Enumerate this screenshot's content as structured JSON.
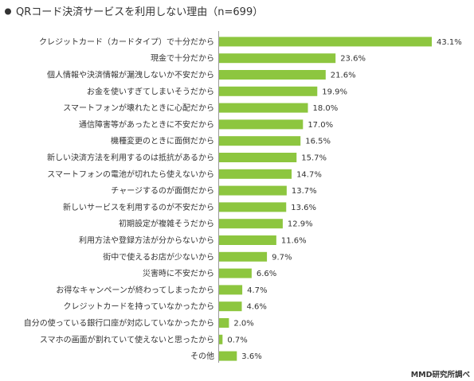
{
  "chart_data": {
    "type": "bar",
    "orientation": "horizontal",
    "title": "QRコード決済サービスを利用しない理由（n=699）",
    "source": "MMD研究所調べ",
    "bar_color": "#8dc63f",
    "value_suffix": "%",
    "xlim": [
      0,
      43.1
    ],
    "grid": false,
    "categories": [
      "クレジットカード（カードタイプ）で十分だから",
      "現金で十分だから",
      "個人情報や決済情報が漏洩しないか不安だから",
      "お金を使いすぎてしまいそうだから",
      "スマートフォンが壊れたときに心配だから",
      "通信障害等があったときに不安だから",
      "機種変更のときに面倒だから",
      "新しい決済方法を利用するのは抵抗があるから",
      "スマートフォンの電池が切れたら使えないから",
      "チャージするのが面倒だから",
      "新しいサービスを利用するのが不安だから",
      "初期設定が複雑そうだから",
      "利用方法や登録方法が分からないから",
      "街中で使えるお店が少ないから",
      "災害時に不安だから",
      "お得なキャンペーンが終わってしまったから",
      "クレジットカードを持っていなかったから",
      "自分の使っている銀行口座が対応していなかったから",
      "スマホの画面が割れていて使えないと思ったから",
      "その他"
    ],
    "values": [
      43.1,
      23.6,
      21.6,
      19.9,
      18.0,
      17.0,
      16.5,
      15.7,
      14.7,
      13.7,
      13.6,
      12.9,
      11.6,
      9.7,
      6.6,
      4.7,
      4.6,
      2.0,
      0.7,
      3.6
    ],
    "value_labels": [
      "43.1%",
      "23.6%",
      "21.6%",
      "19.9%",
      "18.0%",
      "17.0%",
      "16.5%",
      "15.7%",
      "14.7%",
      "13.7%",
      "13.6%",
      "12.9%",
      "11.6%",
      "9.7%",
      "6.6%",
      "4.7%",
      "4.6%",
      "2.0%",
      "0.7%",
      "3.6%"
    ]
  }
}
